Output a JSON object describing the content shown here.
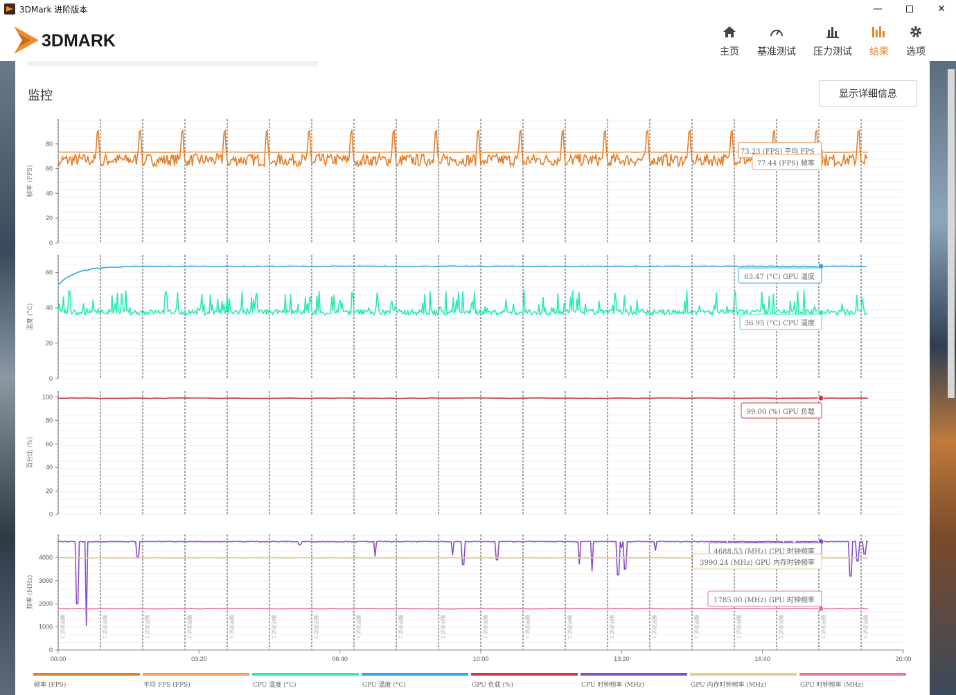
{
  "window": {
    "title": "3DMark 进阶版本"
  },
  "brand": {
    "logo_text": "3DMARK"
  },
  "nav": [
    {
      "label": "主页",
      "icon": "home-icon",
      "active": false
    },
    {
      "label": "基准测试",
      "icon": "gauge-icon",
      "active": false
    },
    {
      "label": "压力测试",
      "icon": "bar-chart-icon",
      "active": false
    },
    {
      "label": "结果",
      "icon": "results-icon",
      "active": true
    },
    {
      "label": "选项",
      "icon": "gear-icon",
      "active": false
    }
  ],
  "section": {
    "title": "监控",
    "detail_button": "显示详细信息"
  },
  "colors": {
    "accent": "#e8842c",
    "fps": "#e07f2c",
    "avg_fps": "#f0a060",
    "cpu_temp": "#2de8b8",
    "gpu_temp": "#30a8e0",
    "gpu_load": "#c8383c",
    "cpu_clock": "#8a4ec0",
    "gpu_mem_clock": "#e8cc88",
    "gpu_clock": "#e07898"
  },
  "chart_data": [
    {
      "type": "line",
      "ylabel": "帧率 (FPS)",
      "ylim": [
        0,
        100
      ],
      "yticks": [
        0,
        20,
        40,
        60,
        80
      ],
      "series": [
        {
          "name": "帧率 (FPS)",
          "pattern": "fps",
          "base": 67,
          "peak": 97
        },
        {
          "name": "平均 FPS (FPS)",
          "pattern": "flat",
          "value": 73.23
        }
      ],
      "annotations": [
        "73.23 (FPS) 平均 FPS",
        "77.44 (FPS) 帧率"
      ]
    },
    {
      "type": "line",
      "ylabel": "温度 (°C)",
      "ylim": [
        0,
        70
      ],
      "yticks": [
        0,
        20,
        40,
        60
      ],
      "series": [
        {
          "name": "GPU 温度 (°C)",
          "pattern": "rise",
          "start": 53,
          "value": 63.47
        },
        {
          "name": "CPU 温度 (°C)",
          "pattern": "noisy",
          "base": 37.5,
          "peak": 50
        }
      ],
      "annotations": [
        "63.47 (°C) GPU 温度",
        "36.95 (°C) CPU 温度"
      ]
    },
    {
      "type": "line",
      "ylabel": "百分比 (%)",
      "ylim": [
        0,
        105
      ],
      "yticks": [
        0,
        20,
        40,
        60,
        80,
        100
      ],
      "series": [
        {
          "name": "GPU 负载 (%)",
          "pattern": "flat",
          "value": 99.0
        }
      ],
      "annotations": [
        "99.00 (%) GPU 负载"
      ]
    },
    {
      "type": "line",
      "ylabel": "频率 (MHz)",
      "ylim": [
        0,
        5000
      ],
      "yticks": [
        0,
        1000,
        2000,
        3000,
        4000
      ],
      "series": [
        {
          "name": "CPU 时钟频率 (MHz)",
          "pattern": "dips",
          "value": 4688.53
        },
        {
          "name": "GPU 内存时钟频率 (MHz)",
          "pattern": "flat",
          "value": 3990.24
        },
        {
          "name": "GPU 时钟频率 (MHz)",
          "pattern": "flat",
          "value": 1785.0
        }
      ],
      "annotations": [
        "4688.53 (MHz) CPU 时钟频率",
        "3990.24 (MHz) GPU 内存时钟频率",
        "1785.00 (MHz) GPU 时钟频率"
      ]
    }
  ],
  "x_axis": {
    "ticks": [
      "00:00",
      "03:20",
      "06:40",
      "10:00",
      "13:20",
      "16:40",
      "20:00"
    ],
    "max_seconds": 1200
  },
  "markers": {
    "label": "循环测试 1",
    "count": 20
  },
  "legend": [
    {
      "label": "帧率 (FPS)",
      "color": "#e07f2c"
    },
    {
      "label": "平均 FPS (FPS)",
      "color": "#f0a060"
    },
    {
      "label": "CPU 温度 (°C)",
      "color": "#2de8b8"
    },
    {
      "label": "GPU 温度 (°C)",
      "color": "#30a8e0"
    },
    {
      "label": "GPU 负载 (%)",
      "color": "#c8383c"
    },
    {
      "label": "CPU 时钟频率 (MHz)",
      "color": "#8a4ec0"
    },
    {
      "label": "GPU 内存时钟频率 (MHz)",
      "color": "#e8cc88"
    },
    {
      "label": "GPU 时钟频率 (MHz)",
      "color": "#e07898"
    }
  ]
}
